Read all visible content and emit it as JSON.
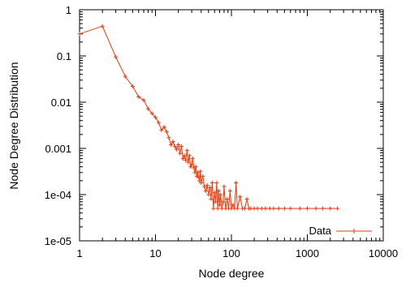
{
  "chart_data": {
    "type": "line",
    "xlabel": "Node degree",
    "ylabel": "Node Degree Distribution",
    "xscale": "log",
    "yscale": "log",
    "xlim": [
      1,
      10000
    ],
    "ylim": [
      1e-05,
      1
    ],
    "grid": false,
    "legend_position": "bottom-right",
    "color": "#ff3300",
    "x_ticks": [
      {
        "value": 1,
        "label": "1"
      },
      {
        "value": 10,
        "label": "10"
      },
      {
        "value": 100,
        "label": "100"
      },
      {
        "value": 1000,
        "label": "1000"
      },
      {
        "value": 10000,
        "label": "10000"
      }
    ],
    "y_ticks": [
      {
        "value": 1,
        "label": "1"
      },
      {
        "value": 0.1,
        "label": "0.1"
      },
      {
        "value": 0.01,
        "label": "0.01"
      },
      {
        "value": 0.001,
        "label": "0.001"
      },
      {
        "value": 0.0001,
        "label": "1e-04"
      },
      {
        "value": 1e-05,
        "label": "1e-05"
      }
    ],
    "series": [
      {
        "name": "Data",
        "x": [
          1,
          2,
          3,
          4,
          5,
          6,
          7,
          8,
          9,
          10,
          11,
          12,
          13,
          14,
          15,
          16,
          17,
          18,
          19,
          20,
          21,
          22,
          23,
          24,
          25,
          26,
          27,
          28,
          29,
          30,
          31,
          32,
          33,
          34,
          35,
          36,
          37,
          38,
          39,
          40,
          42,
          44,
          46,
          48,
          50,
          52,
          54,
          56,
          58,
          60,
          62,
          64,
          66,
          68,
          70,
          72,
          75,
          78,
          80,
          84,
          88,
          92,
          96,
          100,
          105,
          110,
          115,
          120,
          130,
          140,
          150,
          160,
          170,
          180,
          200,
          220,
          250,
          280,
          320,
          360,
          420,
          500,
          600,
          800,
          1000,
          1300,
          1600,
          2000,
          2500
        ],
        "y": [
          0.3,
          0.44,
          0.095,
          0.036,
          0.022,
          0.013,
          0.011,
          0.0072,
          0.0057,
          0.0047,
          0.0036,
          0.0025,
          0.0029,
          0.0023,
          0.0017,
          0.0012,
          0.0014,
          0.0011,
          0.00095,
          0.0012,
          0.00078,
          0.0011,
          0.0006,
          0.0007,
          0.00055,
          0.0009,
          0.0005,
          0.0007,
          0.0004,
          0.00045,
          0.0006,
          0.00038,
          0.0003,
          0.0004,
          0.00025,
          0.0003,
          0.00024,
          0.0002,
          0.00032,
          0.00018,
          0.00025,
          0.00015,
          0.00012,
          0.00016,
          0.0001,
          0.00014,
          8e-05,
          0.00018,
          5e-05,
          0.00011,
          7e-05,
          0.00018,
          5e-05,
          0.00012,
          6e-05,
          0.0001,
          5e-05,
          7e-05,
          0.00015,
          5e-05,
          8e-05,
          5e-05,
          0.00012,
          5e-05,
          6e-05,
          5e-05,
          0.00018,
          5e-05,
          9e-05,
          5e-05,
          5e-05,
          8e-05,
          5e-05,
          5e-05,
          5e-05,
          5e-05,
          5e-05,
          5e-05,
          5e-05,
          5e-05,
          5e-05,
          5e-05,
          5e-05,
          5e-05,
          5e-05,
          5e-05,
          5e-05,
          5e-05,
          5e-05
        ]
      }
    ]
  }
}
